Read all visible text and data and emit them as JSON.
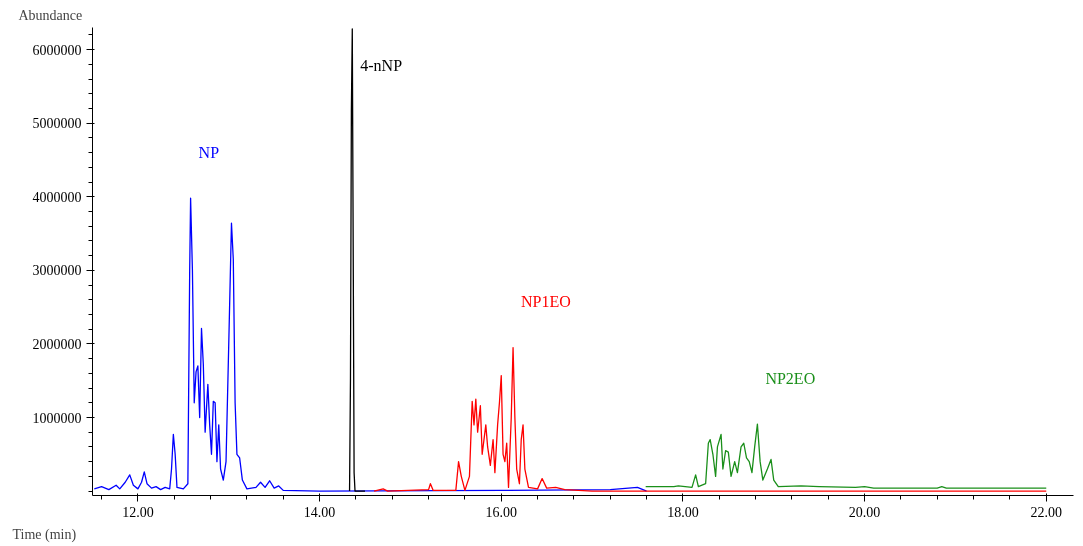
{
  "chart_data": {
    "type": "line",
    "xlabel": "Time (min)",
    "ylabel": "Abundance",
    "xlim": [
      11.5,
      22.3
    ],
    "ylim": [
      -60000,
      6300000
    ],
    "xticks": [
      {
        "value": 12,
        "label": "12.00"
      },
      {
        "value": 14,
        "label": "14.00"
      },
      {
        "value": 16,
        "label": "16.00"
      },
      {
        "value": 18,
        "label": "18.00"
      },
      {
        "value": 20,
        "label": "20.00"
      },
      {
        "value": 22,
        "label": "22.00"
      }
    ],
    "yticks": [
      1000000,
      2000000,
      3000000,
      4000000,
      5000000,
      6000000
    ],
    "grid": false,
    "marker": "none",
    "line_style": "solid",
    "series": [
      {
        "color": "#0000ff",
        "x": [
          11.52,
          11.6,
          11.68,
          11.76,
          11.8,
          11.86,
          11.91,
          11.95,
          12.0,
          12.04,
          12.07,
          12.1,
          12.15,
          12.2,
          12.25,
          12.3,
          12.35,
          12.37,
          12.39,
          12.41,
          12.43,
          12.5,
          12.55,
          12.57,
          12.58,
          12.6,
          12.62,
          12.64,
          12.66,
          12.68,
          12.7,
          12.72,
          12.74,
          12.77,
          12.79,
          12.81,
          12.83,
          12.85,
          12.87,
          12.89,
          12.91,
          12.94,
          12.97,
          13.0,
          13.03,
          13.05,
          13.07,
          13.09,
          13.12,
          13.15,
          13.2,
          13.3,
          13.35,
          13.4,
          13.45,
          13.5,
          13.55,
          13.6,
          14.0,
          16.0,
          17.2,
          17.5,
          17.6
        ],
        "values": [
          30000,
          60000,
          20000,
          80000,
          30000,
          120000,
          220000,
          80000,
          30000,
          120000,
          260000,
          100000,
          40000,
          60000,
          20000,
          50000,
          30000,
          300000,
          770000,
          500000,
          50000,
          30000,
          100000,
          3000000,
          3980000,
          3000000,
          1200000,
          1620000,
          1700000,
          1000000,
          2210000,
          1720000,
          800000,
          1450000,
          900000,
          500000,
          1220000,
          1200000,
          400000,
          900000,
          300000,
          150000,
          400000,
          2000000,
          3640000,
          3150000,
          1200000,
          500000,
          450000,
          150000,
          30000,
          50000,
          120000,
          50000,
          140000,
          40000,
          70000,
          10000,
          0,
          10000,
          20000,
          50000,
          0
        ]
      },
      {
        "color": "#000000",
        "x": [
          14.33,
          14.34,
          14.35,
          14.36,
          14.37,
          14.38,
          14.39,
          14.5
        ],
        "values": [
          0,
          1520000,
          5160000,
          6280000,
          3320000,
          250000,
          0,
          0
        ]
      },
      {
        "color": "#ff0000",
        "x": [
          14.6,
          14.7,
          14.75,
          15.2,
          15.22,
          15.25,
          15.5,
          15.53,
          15.56,
          15.6,
          15.65,
          15.68,
          15.7,
          15.72,
          15.74,
          15.77,
          15.79,
          15.83,
          15.85,
          15.88,
          15.91,
          15.93,
          15.96,
          15.98,
          16.0,
          16.02,
          16.04,
          16.06,
          16.08,
          16.11,
          16.13,
          16.15,
          16.17,
          16.2,
          16.22,
          16.24,
          16.26,
          16.3,
          16.4,
          16.45,
          16.5,
          16.6,
          16.7,
          17.0,
          22.0
        ],
        "values": [
          0,
          30000,
          0,
          20000,
          100000,
          10000,
          10000,
          400000,
          200000,
          10000,
          200000,
          1220000,
          900000,
          1250000,
          800000,
          1160000,
          500000,
          900000,
          600000,
          350000,
          700000,
          250000,
          900000,
          1200000,
          1570000,
          500000,
          400000,
          650000,
          50000,
          1000000,
          1950000,
          1000000,
          300000,
          100000,
          700000,
          900000,
          300000,
          50000,
          30000,
          170000,
          40000,
          50000,
          20000,
          0,
          0
        ]
      },
      {
        "color": "#1a8f1a",
        "x": [
          17.59,
          17.9,
          17.95,
          18.1,
          18.14,
          18.17,
          18.25,
          18.28,
          18.3,
          18.33,
          18.36,
          18.38,
          18.42,
          18.44,
          18.47,
          18.5,
          18.53,
          18.57,
          18.6,
          18.64,
          18.67,
          18.7,
          18.73,
          18.76,
          18.79,
          18.82,
          18.85,
          18.88,
          18.93,
          18.97,
          19.0,
          19.05,
          19.3,
          19.5,
          19.9,
          20.0,
          20.1,
          20.8,
          20.85,
          20.9,
          22.0
        ],
        "values": [
          60000,
          60000,
          70000,
          50000,
          220000,
          60000,
          100000,
          650000,
          700000,
          500000,
          200000,
          600000,
          770000,
          300000,
          550000,
          530000,
          200000,
          400000,
          250000,
          600000,
          650000,
          450000,
          400000,
          250000,
          600000,
          910000,
          400000,
          150000,
          300000,
          430000,
          150000,
          60000,
          70000,
          60000,
          50000,
          60000,
          40000,
          40000,
          60000,
          40000,
          40000
        ]
      }
    ],
    "annotations": [
      "NP",
      "4-nNP",
      "NP1EO",
      "NP2EO"
    ]
  }
}
